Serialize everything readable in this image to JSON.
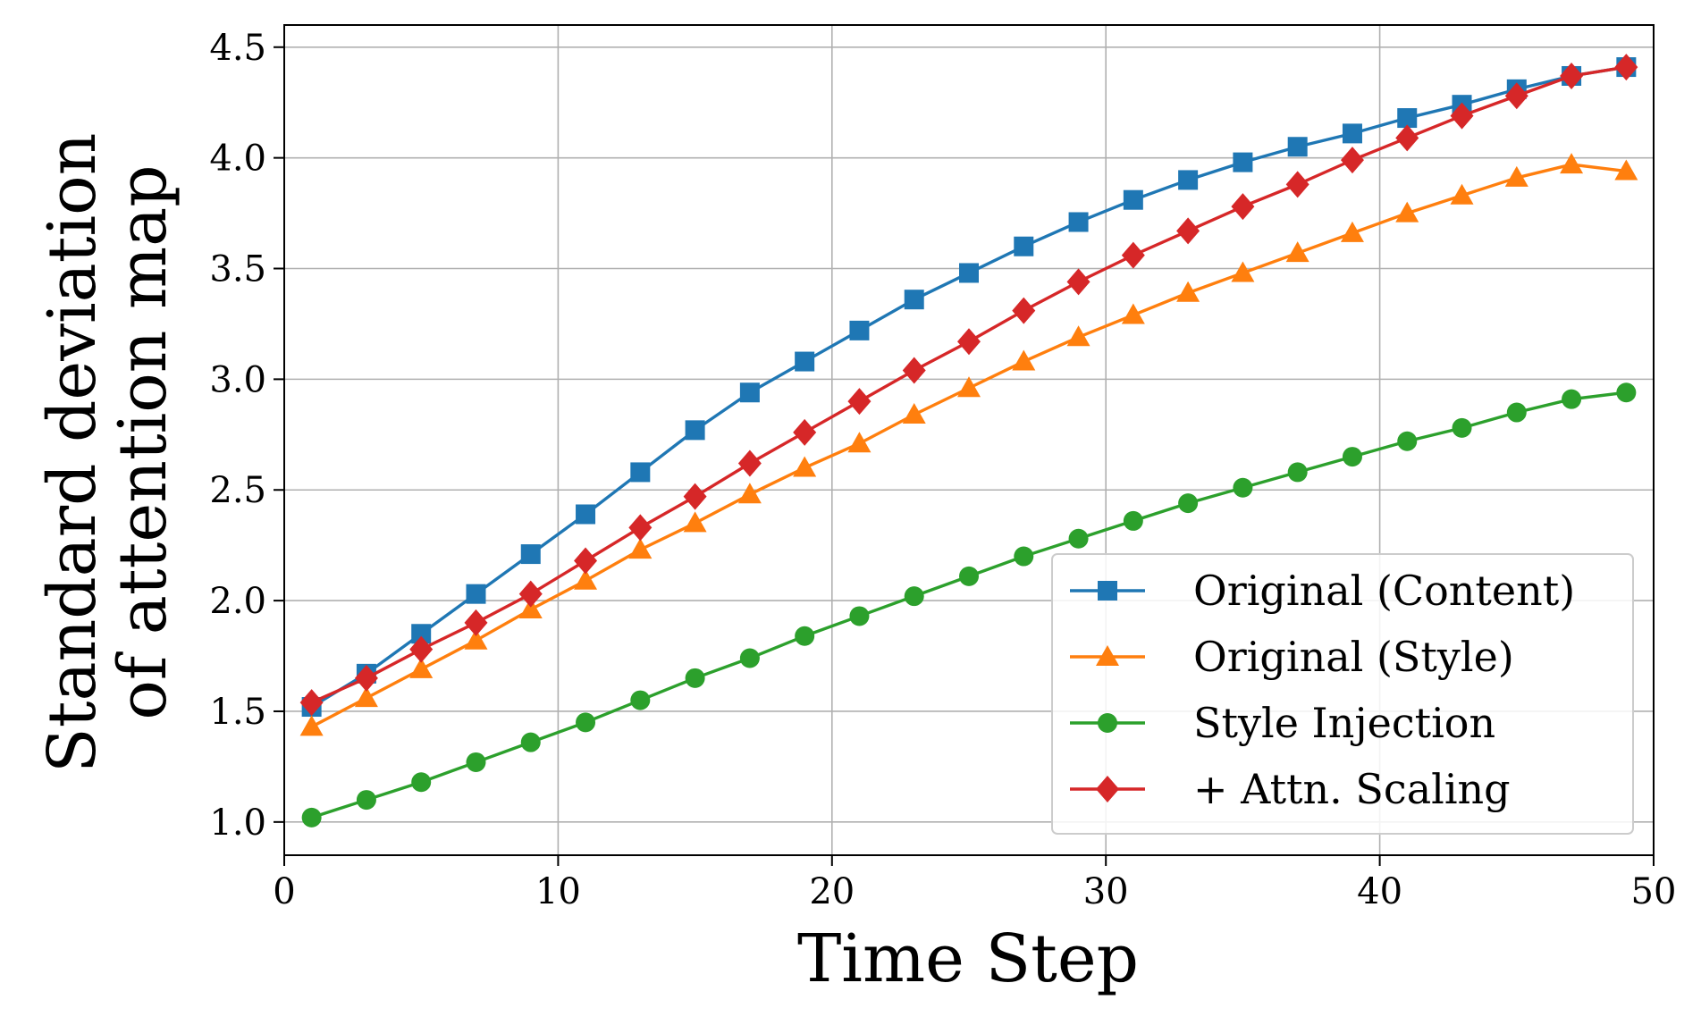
{
  "chart_data": {
    "type": "line",
    "title": "",
    "xlabel": "Time Step",
    "ylabel_lines": [
      "Standard deviation",
      "of attention map"
    ],
    "xlim": [
      0,
      50
    ],
    "ylim": [
      0.85,
      4.6
    ],
    "xticks": [
      0,
      10,
      20,
      30,
      40,
      50
    ],
    "xtick_labels": [
      "0",
      "10",
      "20",
      "30",
      "40",
      "50"
    ],
    "yticks": [
      1.0,
      1.5,
      2.0,
      2.5,
      3.0,
      3.5,
      4.0,
      4.5
    ],
    "ytick_labels": [
      "1.0",
      "1.5",
      "2.0",
      "2.5",
      "3.0",
      "3.5",
      "4.0",
      "4.5"
    ],
    "grid": true,
    "legend_position": "lower-right",
    "x": [
      1,
      3,
      5,
      7,
      9,
      11,
      13,
      15,
      17,
      19,
      21,
      23,
      25,
      27,
      29,
      31,
      33,
      35,
      37,
      39,
      41,
      43,
      45,
      47,
      49
    ],
    "series": [
      {
        "name": "Original (Content)",
        "color": "#1f77b4",
        "marker": "square",
        "values": [
          1.52,
          1.67,
          1.85,
          2.03,
          2.21,
          2.39,
          2.58,
          2.77,
          2.94,
          3.08,
          3.22,
          3.36,
          3.48,
          3.6,
          3.71,
          3.81,
          3.9,
          3.98,
          4.05,
          4.11,
          4.18,
          4.24,
          4.31,
          4.37,
          4.41
        ]
      },
      {
        "name": "Original (Style)",
        "color": "#ff7f0e",
        "marker": "triangle",
        "values": [
          1.43,
          1.56,
          1.69,
          1.82,
          1.96,
          2.09,
          2.23,
          2.35,
          2.48,
          2.6,
          2.71,
          2.84,
          2.96,
          3.08,
          3.19,
          3.29,
          3.39,
          3.48,
          3.57,
          3.66,
          3.75,
          3.83,
          3.91,
          3.97,
          3.94
        ]
      },
      {
        "name": "Style Injection",
        "color": "#2ca02c",
        "marker": "circle",
        "values": [
          1.02,
          1.1,
          1.18,
          1.27,
          1.36,
          1.45,
          1.55,
          1.65,
          1.74,
          1.84,
          1.93,
          2.02,
          2.11,
          2.2,
          2.28,
          2.36,
          2.44,
          2.51,
          2.58,
          2.65,
          2.72,
          2.78,
          2.85,
          2.91,
          2.94
        ]
      },
      {
        "name": "+ Attn. Scaling",
        "color": "#d62728",
        "marker": "diamond",
        "values": [
          1.54,
          1.65,
          1.78,
          1.9,
          2.03,
          2.18,
          2.33,
          2.47,
          2.62,
          2.76,
          2.9,
          3.04,
          3.17,
          3.31,
          3.44,
          3.56,
          3.67,
          3.78,
          3.88,
          3.99,
          4.09,
          4.19,
          4.28,
          4.37,
          4.41
        ]
      }
    ]
  }
}
